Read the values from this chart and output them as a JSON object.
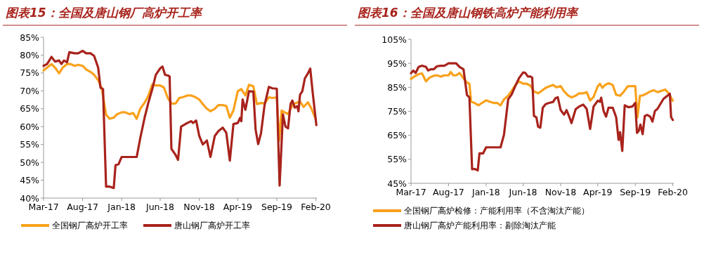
{
  "chart_data": [
    {
      "type": "line",
      "title": "图表15：全国及唐山钢厂高炉开工率",
      "ylim": [
        40,
        85
      ],
      "yticks": [
        {
          "value": 40,
          "label": "40%"
        },
        {
          "value": 45,
          "label": "45%"
        },
        {
          "value": 50,
          "label": "50%"
        },
        {
          "value": 55,
          "label": "55%"
        },
        {
          "value": 60,
          "label": "60%"
        },
        {
          "value": 65,
          "label": "65%"
        },
        {
          "value": 70,
          "label": "70%"
        },
        {
          "value": 75,
          "label": "75%"
        },
        {
          "value": 80,
          "label": "80%"
        },
        {
          "value": 85,
          "label": "85%"
        }
      ],
      "xlim": [
        "2017-03-01",
        "2020-02-05"
      ],
      "xticks": [
        {
          "value": "2017-03-01",
          "label": "Mar-17"
        },
        {
          "value": "2017-08-01",
          "label": "Aug-17"
        },
        {
          "value": "2018-01-01",
          "label": "Jan-18"
        },
        {
          "value": "2018-06-01",
          "label": "Jun-18"
        },
        {
          "value": "2018-11-01",
          "label": "Nov-18"
        },
        {
          "value": "2019-04-01",
          "label": "Apr-19"
        },
        {
          "value": "2019-09-01",
          "label": "Sep-19"
        },
        {
          "value": "2020-02-01",
          "label": "Feb-20"
        }
      ],
      "grid": false,
      "legend": "bottom",
      "marker": "none",
      "line_style": "solid",
      "series": [
        {
          "name": "全国钢厂高炉开工率",
          "color": "#f9a11b",
          "x": [
            "2017-03-01",
            "2017-04-01",
            "2017-04-15",
            "2017-05-01",
            "2017-05-15",
            "2017-06-01",
            "2017-06-15",
            "2017-07-01",
            "2017-07-15",
            "2017-08-01",
            "2017-08-15",
            "2017-09-01",
            "2017-09-15",
            "2017-10-01",
            "2017-10-15",
            "2017-11-01",
            "2017-11-15",
            "2017-12-01",
            "2017-12-15",
            "2018-01-01",
            "2018-01-15",
            "2018-02-01",
            "2018-02-15",
            "2018-03-01",
            "2018-03-15",
            "2018-04-01",
            "2018-04-15",
            "2018-05-01",
            "2018-05-15",
            "2018-06-01",
            "2018-06-15",
            "2018-07-01",
            "2018-07-15",
            "2018-08-01",
            "2018-08-15",
            "2018-09-01",
            "2018-09-15",
            "2018-10-01",
            "2018-10-15",
            "2018-11-01",
            "2018-11-15",
            "2018-12-01",
            "2018-12-15",
            "2019-01-01",
            "2019-01-15",
            "2019-02-01",
            "2019-02-15",
            "2019-03-01",
            "2019-03-15",
            "2019-04-01",
            "2019-04-15",
            "2019-05-01",
            "2019-05-15",
            "2019-06-01",
            "2019-06-15",
            "2019-07-01",
            "2019-07-15",
            "2019-08-01",
            "2019-08-15",
            "2019-09-01",
            "2019-09-10",
            "2019-09-20",
            "2019-10-01",
            "2019-10-15",
            "2019-11-01",
            "2019-11-15",
            "2019-12-01",
            "2019-12-15",
            "2020-01-01",
            "2020-01-15",
            "2020-02-01"
          ],
          "values": [
            75.7,
            77.5,
            76.5,
            74.9,
            76.5,
            77.5,
            77.5,
            77,
            77.3,
            77,
            76,
            75.3,
            74.5,
            73,
            70.7,
            63.3,
            62.2,
            62.5,
            63.5,
            64,
            64,
            63.5,
            63.8,
            62.2,
            65,
            66.7,
            68.5,
            71.8,
            71.5,
            71.5,
            71,
            68,
            66.4,
            66.5,
            68,
            68.3,
            68.7,
            68.7,
            68.3,
            67.6,
            66.3,
            65,
            64.3,
            65,
            66,
            66,
            65.8,
            62.5,
            64.5,
            69.9,
            70.5,
            68.7,
            71.7,
            71.3,
            66.3,
            66.6,
            66.5,
            68.2,
            68,
            68.2,
            56.1,
            64.5,
            64,
            63.5,
            66,
            66.6,
            67,
            65.5,
            66.8,
            65,
            62
          ]
        },
        {
          "name": "唐山钢厂高炉开工率",
          "color": "#a8231c",
          "x": [
            "2017-03-01",
            "2017-03-15",
            "2017-04-01",
            "2017-04-15",
            "2017-05-01",
            "2017-05-10",
            "2017-05-20",
            "2017-06-01",
            "2017-06-10",
            "2017-07-01",
            "2017-07-15",
            "2017-08-01",
            "2017-08-15",
            "2017-09-01",
            "2017-09-15",
            "2017-10-01",
            "2017-10-10",
            "2017-10-20",
            "2017-11-01",
            "2017-11-15",
            "2017-12-01",
            "2017-12-08",
            "2017-12-20",
            "2018-01-01",
            "2018-03-01",
            "2018-03-15",
            "2018-04-01",
            "2018-04-15",
            "2018-05-01",
            "2018-05-15",
            "2018-06-01",
            "2018-06-10",
            "2018-06-20",
            "2018-07-01",
            "2018-07-08",
            "2018-07-15",
            "2018-08-01",
            "2018-08-10",
            "2018-08-22",
            "2018-09-01",
            "2018-09-15",
            "2018-10-01",
            "2018-10-08",
            "2018-10-20",
            "2018-11-01",
            "2018-11-15",
            "2018-12-01",
            "2018-12-15",
            "2019-01-01",
            "2019-01-15",
            "2019-02-01",
            "2019-02-15",
            "2019-03-01",
            "2019-03-15",
            "2019-04-01",
            "2019-04-10",
            "2019-04-15",
            "2019-04-20",
            "2019-05-01",
            "2019-05-15",
            "2019-06-01",
            "2019-06-10",
            "2019-06-20",
            "2019-07-01",
            "2019-07-15",
            "2019-08-01",
            "2019-08-15",
            "2019-09-01",
            "2019-09-05",
            "2019-09-12",
            "2019-09-25",
            "2019-10-05",
            "2019-10-15",
            "2019-10-25",
            "2019-11-01",
            "2019-11-10",
            "2019-11-20",
            "2019-11-25",
            "2019-12-01",
            "2019-12-10",
            "2019-12-20",
            "2020-01-01",
            "2020-01-10",
            "2020-01-20",
            "2020-02-03"
          ],
          "values": [
            77,
            77.5,
            79.5,
            78.2,
            78.5,
            77.5,
            78.5,
            78,
            80.8,
            80.5,
            80.5,
            81.2,
            80.5,
            80.5,
            79.8,
            76.5,
            70.9,
            70.5,
            43.2,
            43.2,
            42.8,
            49.2,
            49.5,
            51.5,
            51.5,
            56.8,
            62.5,
            66.5,
            70.5,
            74.5,
            76.3,
            76.8,
            74.5,
            74.3,
            74,
            53.8,
            52,
            50.7,
            60,
            60.4,
            61,
            61.5,
            61,
            61.7,
            57.4,
            55,
            56.1,
            51.5,
            57.4,
            58.7,
            59.7,
            58.3,
            50.5,
            60.7,
            61,
            62.4,
            61.5,
            67.6,
            64.7,
            69.9,
            69.8,
            59.1,
            55.1,
            58.1,
            66,
            71.1,
            70.7,
            70.6,
            60,
            43.5,
            63.4,
            60,
            59.5,
            66.3,
            67.3,
            65.3,
            65.7,
            64.3,
            68.9,
            69.9,
            73.5,
            74.9,
            76.2,
            69.3,
            60.4
          ]
        }
      ]
    },
    {
      "type": "line",
      "title": "图表16：全国及唐山钢铁高炉产能利用率",
      "ylim": [
        45,
        105
      ],
      "yticks": [
        {
          "value": 45,
          "label": "45%"
        },
        {
          "value": 55,
          "label": "55%"
        },
        {
          "value": 65,
          "label": "65%"
        },
        {
          "value": 75,
          "label": "75%"
        },
        {
          "value": 85,
          "label": "85%"
        },
        {
          "value": 95,
          "label": "95%"
        },
        {
          "value": 105,
          "label": "105%"
        }
      ],
      "xlim": [
        "2017-03-01",
        "2020-02-05"
      ],
      "xticks": [
        {
          "value": "2017-03-01",
          "label": "Mar-17"
        },
        {
          "value": "2017-08-01",
          "label": "Aug-17"
        },
        {
          "value": "2018-01-01",
          "label": "Jan-18"
        },
        {
          "value": "2018-06-01",
          "label": "Jun-18"
        },
        {
          "value": "2018-11-01",
          "label": "Nov-18"
        },
        {
          "value": "2019-04-01",
          "label": "Apr-19"
        },
        {
          "value": "2019-09-01",
          "label": "Sep-19"
        },
        {
          "value": "2020-02-01",
          "label": "Feb-20"
        }
      ],
      "grid": false,
      "legend": "bottom",
      "marker": "none",
      "line_style": "solid",
      "series": [
        {
          "name": "全国钢厂高炉检修：产能利用率（不含淘汰产能）",
          "color": "#f9a11b",
          "x": [
            "2017-03-01",
            "2017-03-15",
            "2017-04-01",
            "2017-04-15",
            "2017-05-01",
            "2017-05-15",
            "2017-06-01",
            "2017-06-15",
            "2017-07-01",
            "2017-07-15",
            "2017-08-01",
            "2017-08-10",
            "2017-08-20",
            "2017-09-01",
            "2017-09-15",
            "2017-10-01",
            "2017-10-15",
            "2017-10-25",
            "2017-11-01",
            "2017-11-15",
            "2017-12-01",
            "2017-12-15",
            "2018-01-01",
            "2018-01-15",
            "2018-02-01",
            "2018-02-15",
            "2018-03-01",
            "2018-03-15",
            "2018-04-01",
            "2018-04-15",
            "2018-05-01",
            "2018-05-15",
            "2018-06-01",
            "2018-06-15",
            "2018-07-01",
            "2018-07-15",
            "2018-08-01",
            "2018-08-15",
            "2018-09-01",
            "2018-09-15",
            "2018-10-01",
            "2018-10-15",
            "2018-11-01",
            "2018-11-15",
            "2018-12-01",
            "2018-12-15",
            "2019-01-01",
            "2019-01-15",
            "2019-02-01",
            "2019-02-15",
            "2019-03-01",
            "2019-03-15",
            "2019-04-01",
            "2019-04-10",
            "2019-04-20",
            "2019-05-01",
            "2019-05-15",
            "2019-06-01",
            "2019-06-15",
            "2019-07-01",
            "2019-07-15",
            "2019-08-01",
            "2019-08-15",
            "2019-09-01",
            "2019-09-10",
            "2019-09-20",
            "2019-10-01",
            "2019-10-15",
            "2019-11-01",
            "2019-11-15",
            "2019-12-01",
            "2019-12-15",
            "2020-01-01",
            "2020-01-15",
            "2020-02-01"
          ],
          "values": [
            88.5,
            89.5,
            90.5,
            90.8,
            87.5,
            89,
            89.8,
            90,
            89.5,
            90,
            90,
            91.4,
            90,
            90,
            91,
            88.7,
            87,
            86.5,
            79,
            78.5,
            77.5,
            78.5,
            79.6,
            79,
            78.5,
            78.5,
            77.5,
            80,
            81.5,
            83.5,
            86,
            87.5,
            86.5,
            86.5,
            85.7,
            83.3,
            82.5,
            83.5,
            84.8,
            85.4,
            86,
            85,
            85.5,
            83.3,
            81.6,
            80.8,
            81.5,
            82.5,
            82.5,
            83,
            79.5,
            81,
            85.4,
            86.5,
            84.8,
            86,
            86.7,
            86,
            81.9,
            81.5,
            83,
            85.4,
            85.5,
            85.5,
            72.5,
            81.5,
            81.6,
            82.3,
            83.3,
            83.8,
            83,
            83.5,
            84.1,
            82.5,
            79.4
          ]
        },
        {
          "name": "唐山钢厂高炉产能利用率：剔除淘汰产能",
          "color": "#a8231c",
          "x": [
            "2017-03-01",
            "2017-03-10",
            "2017-03-20",
            "2017-04-01",
            "2017-04-15",
            "2017-05-01",
            "2017-05-10",
            "2017-05-20",
            "2017-06-01",
            "2017-06-15",
            "2017-07-01",
            "2017-07-15",
            "2017-08-01",
            "2017-08-15",
            "2017-09-01",
            "2017-09-15",
            "2017-10-01",
            "2017-10-15",
            "2017-10-25",
            "2017-11-05",
            "2017-11-15",
            "2017-11-28",
            "2017-12-05",
            "2017-12-20",
            "2018-01-01",
            "2018-03-01",
            "2018-03-15",
            "2018-04-01",
            "2018-04-15",
            "2018-05-01",
            "2018-05-15",
            "2018-06-01",
            "2018-06-10",
            "2018-06-20",
            "2018-07-01",
            "2018-07-08",
            "2018-07-15",
            "2018-07-25",
            "2018-08-01",
            "2018-08-10",
            "2018-08-20",
            "2018-09-01",
            "2018-09-15",
            "2018-10-01",
            "2018-10-10",
            "2018-10-20",
            "2018-11-01",
            "2018-11-15",
            "2018-11-25",
            "2018-12-05",
            "2018-12-15",
            "2019-01-01",
            "2019-01-15",
            "2019-02-01",
            "2019-02-15",
            "2019-03-01",
            "2019-03-15",
            "2019-04-01",
            "2019-04-10",
            "2019-04-15",
            "2019-04-25",
            "2019-05-05",
            "2019-05-15",
            "2019-06-01",
            "2019-06-15",
            "2019-06-25",
            "2019-07-01",
            "2019-07-10",
            "2019-07-20",
            "2019-08-05",
            "2019-08-20",
            "2019-09-01",
            "2019-09-08",
            "2019-09-15",
            "2019-09-22",
            "2019-10-01",
            "2019-10-10",
            "2019-10-20",
            "2019-11-01",
            "2019-11-10",
            "2019-11-20",
            "2019-12-01",
            "2019-12-15",
            "2019-12-25",
            "2020-01-20",
            "2020-01-25",
            "2020-02-01"
          ],
          "values": [
            90.9,
            92,
            91,
            93.5,
            94,
            93.5,
            92,
            92.5,
            92.5,
            93.8,
            94,
            94,
            95,
            95,
            95,
            93.5,
            92.5,
            81.8,
            80.8,
            50.9,
            51,
            50.4,
            57.5,
            57.5,
            60,
            60,
            65.3,
            80,
            82,
            85.8,
            88.8,
            91.2,
            91,
            89.5,
            89.5,
            89,
            73.1,
            72.5,
            68.6,
            68.2,
            76.5,
            78,
            78.5,
            78.9,
            80.4,
            80.9,
            75.5,
            73.6,
            75.5,
            73,
            70.1,
            75.9,
            77,
            77.8,
            76,
            67.7,
            77,
            79.4,
            79,
            80.7,
            75.1,
            72.8,
            76.5,
            76.5,
            72.6,
            63.1,
            66.3,
            58.5,
            77.5,
            76.7,
            77,
            78.5,
            66,
            66.8,
            69.5,
            65.5,
            73.1,
            73.5,
            72.8,
            70.7,
            75.1,
            76.1,
            78.5,
            80.2,
            82.3,
            72.6,
            71.4
          ]
        }
      ]
    }
  ]
}
